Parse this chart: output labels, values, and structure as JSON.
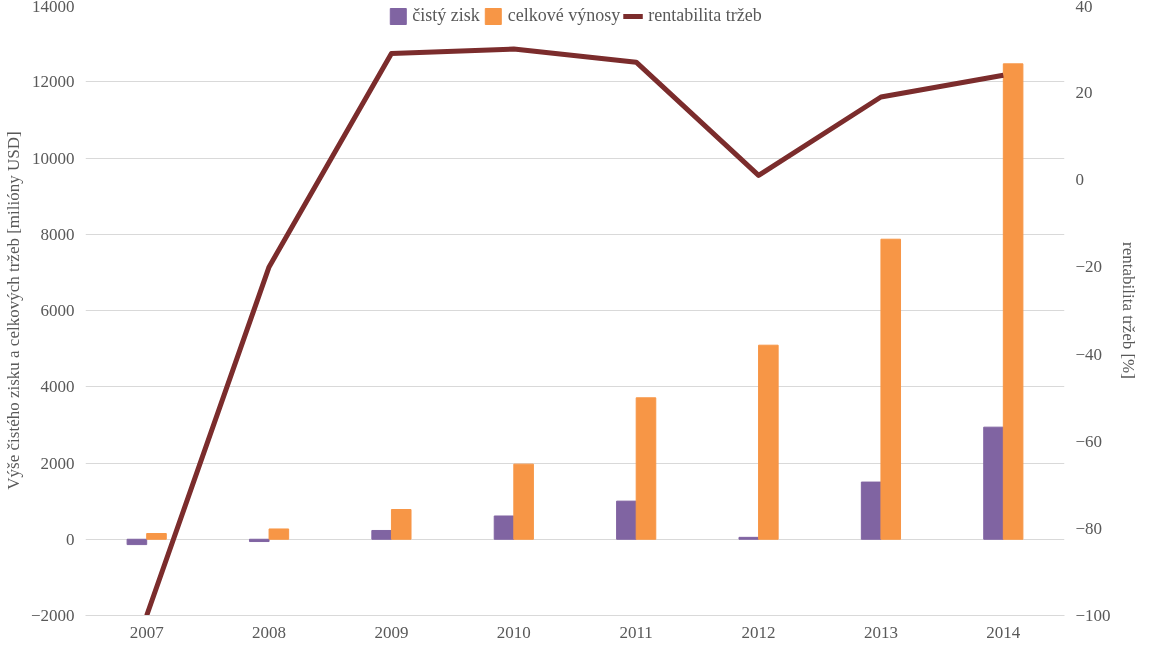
{
  "chart_data": {
    "type": "bar",
    "categories": [
      "2007",
      "2008",
      "2009",
      "2010",
      "2011",
      "2012",
      "2013",
      "2014"
    ],
    "series": [
      {
        "name": "čistý zisk",
        "color": "#8064a2",
        "values": [
          -140,
          -60,
          230,
          610,
          1000,
          50,
          1500,
          2940
        ]
      },
      {
        "name": "celkové výnosy",
        "color": "#f79646",
        "values": [
          150,
          270,
          780,
          1970,
          3710,
          5090,
          7870,
          12470
        ]
      },
      {
        "name": "rentabilita tržeb",
        "color": "#7b2c2c",
        "type": "line",
        "axis": "y2",
        "values": [
          -100,
          -20,
          29,
          30,
          27,
          1,
          19,
          24
        ]
      }
    ],
    "ylabel": "Výše čistého zisku a celkových tržeb [milióny USD]",
    "y2label": "rentabilita tržeb [%]",
    "ylim": [
      -2000,
      14000
    ],
    "yticks": [
      -2000,
      0,
      2000,
      4000,
      6000,
      8000,
      10000,
      12000,
      14000
    ],
    "y2lim": [
      -100,
      40
    ],
    "y2ticks": [
      -100,
      -80,
      -60,
      -40,
      -20,
      0,
      20,
      40
    ],
    "grid": "y",
    "legend": "top"
  }
}
